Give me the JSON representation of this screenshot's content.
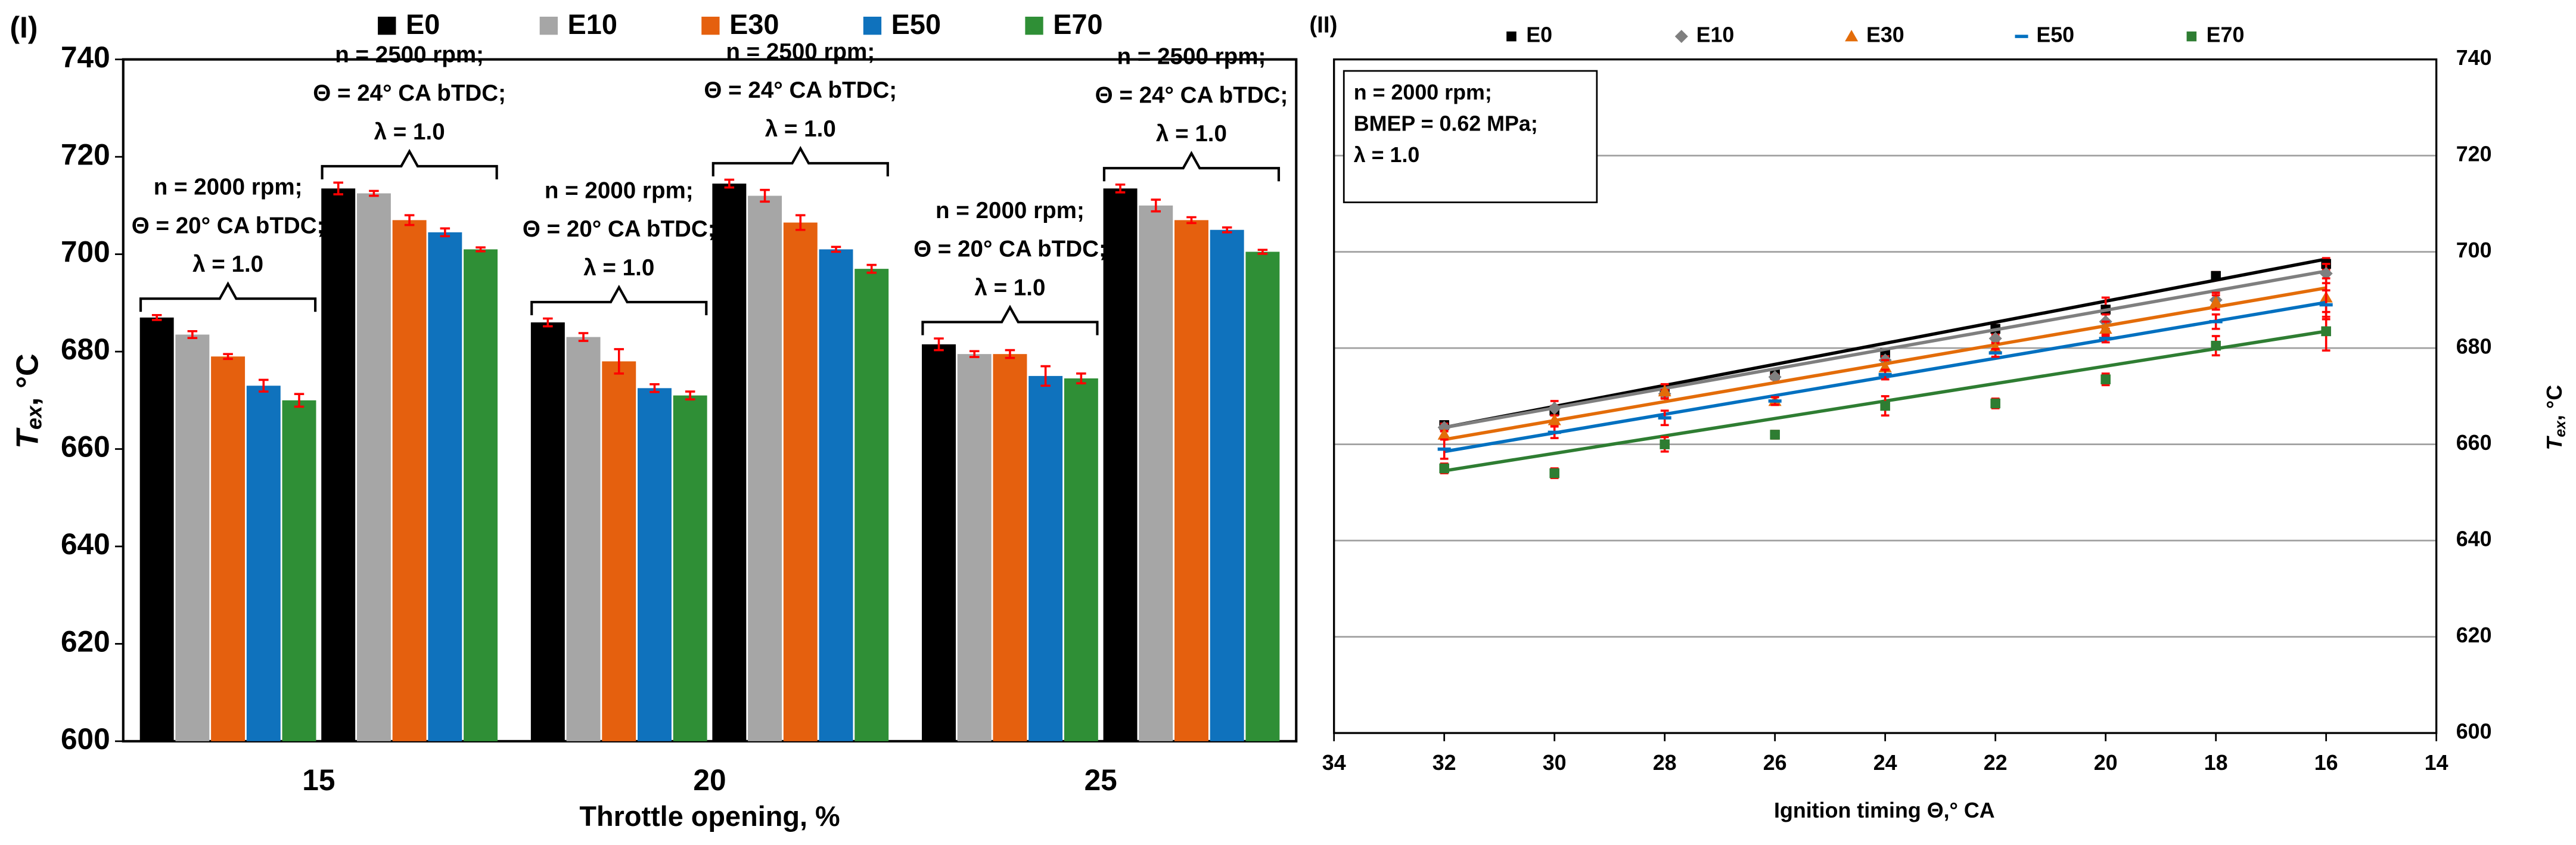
{
  "chart_data": [
    {
      "type": "bar",
      "label": "(I)",
      "xlabel": "Throttle opening, %",
      "ylabel": [
        "T",
        "ex",
        ", °C"
      ],
      "categories": [
        "15",
        "20",
        "25"
      ],
      "ylim": [
        600,
        740
      ],
      "yticks": [
        600,
        620,
        640,
        660,
        680,
        700,
        720,
        740
      ],
      "grid": false,
      "error_color": "#ff0000",
      "annotations": [
        [
          [
            "n = 2000 rpm;",
            "Θ = 20° CA bTDC;",
            "λ = 1.0"
          ],
          [
            "n = 2500 rpm;",
            "Θ = 24° CA bTDC;",
            "λ = 1.0"
          ]
        ],
        [
          [
            "n = 2000 rpm;",
            "Θ = 20° CA bTDC;",
            "λ = 1.0"
          ],
          [
            "n = 2500 rpm;",
            "Θ = 24° CA bTDC;",
            "λ = 1.0"
          ]
        ],
        [
          [
            "n = 2000 rpm;",
            "Θ = 20° CA bTDC;",
            "λ = 1.0"
          ],
          [
            "n = 2500 rpm;",
            "Θ = 24° CA bTDC;",
            "λ = 1.0"
          ]
        ]
      ],
      "series": [
        {
          "name": "E0",
          "color": "#000000",
          "values": [
            [
              687,
              713.5
            ],
            [
              686,
              714.5
            ],
            [
              681.5,
              713.5
            ]
          ],
          "errors": [
            [
              0.5,
              1.2
            ],
            [
              0.8,
              0.8
            ],
            [
              1.2,
              0.8
            ]
          ]
        },
        {
          "name": "E10",
          "color": "#a6a6a6",
          "values": [
            [
              683.5,
              712.5
            ],
            [
              683,
              712
            ],
            [
              679.5,
              710
            ]
          ],
          "errors": [
            [
              0.7,
              0.5
            ],
            [
              0.8,
              1.2
            ],
            [
              0.6,
              1.2
            ]
          ]
        },
        {
          "name": "E30",
          "color": "#e5600e",
          "values": [
            [
              679,
              707
            ],
            [
              678,
              706.5
            ],
            [
              679.5,
              707
            ]
          ],
          "errors": [
            [
              0.5,
              1
            ],
            [
              2.5,
              1.5
            ],
            [
              0.8,
              0.6
            ]
          ]
        },
        {
          "name": "E50",
          "color": "#0f72bd",
          "values": [
            [
              673,
              704.5
            ],
            [
              672.5,
              701
            ],
            [
              675,
              705
            ]
          ],
          "errors": [
            [
              1.2,
              0.8
            ],
            [
              0.8,
              0.5
            ],
            [
              2,
              0.5
            ]
          ]
        },
        {
          "name": "E70",
          "color": "#2f8f36",
          "values": [
            [
              670,
              701
            ],
            [
              671,
              697
            ],
            [
              674.5,
              700.5
            ]
          ],
          "errors": [
            [
              1.3,
              0.4
            ],
            [
              0.8,
              0.8
            ],
            [
              1,
              0.4
            ]
          ]
        }
      ]
    },
    {
      "type": "scatter",
      "label": "(II)",
      "xlabel": "Ignition timing Θ,° CA",
      "ylabel": [
        "T",
        "ex",
        ", °C"
      ],
      "box_text": [
        "n = 2000 rpm;",
        "BMEP = 0.62 MPa;",
        "λ = 1.0"
      ],
      "x": [
        32,
        30,
        28,
        26,
        24,
        22,
        20,
        18,
        16
      ],
      "xlim": [
        34,
        14
      ],
      "xticks": [
        34,
        32,
        30,
        28,
        26,
        24,
        22,
        20,
        18,
        16,
        14
      ],
      "ylim": [
        600,
        740
      ],
      "yticks": [
        600,
        620,
        640,
        660,
        680,
        700,
        720,
        740
      ],
      "grid": true,
      "error_color": "#ff0000",
      "series": [
        {
          "name": "E0",
          "color": "#000000",
          "marker": "square",
          "values": [
            664,
            667,
            671,
            674.5,
            679,
            684,
            688,
            695,
            697.5
          ],
          "errors": [
            0.5,
            1,
            0.8,
            0.5,
            0.5,
            0.8,
            2.5,
            0.8,
            1.2
          ],
          "fit": [
            663.5,
            698.5
          ]
        },
        {
          "name": "E10",
          "color": "#7f7f7f",
          "marker": "diamond",
          "values": [
            663.5,
            667.5,
            670.5,
            674,
            677.5,
            682,
            685.5,
            690,
            695.5
          ],
          "errors": [
            0.8,
            1.5,
            0.8,
            0.5,
            0.8,
            0.8,
            1.5,
            1.5,
            2
          ],
          "fit": [
            663.5,
            696
          ]
        },
        {
          "name": "E30",
          "color": "#e36c09",
          "marker": "triangle",
          "values": [
            662,
            665,
            671,
            669,
            676,
            680,
            684,
            689.5,
            690.5
          ],
          "errors": [
            0.8,
            1,
            1.5,
            0.8,
            1.5,
            1,
            1.5,
            1.5,
            4
          ],
          "fit": [
            661,
            692.5
          ]
        },
        {
          "name": "E50",
          "color": "#0070c0",
          "marker": "dash",
          "values": [
            659,
            662.5,
            665.5,
            669,
            674.5,
            679,
            682,
            685.5,
            689
          ],
          "errors": [
            2,
            1.2,
            1.5,
            0.8,
            1,
            0.8,
            0.8,
            1.5,
            3
          ],
          "fit": [
            658.5,
            689.5
          ]
        },
        {
          "name": "E70",
          "color": "#2e7d32",
          "marker": "square",
          "values": [
            655,
            654,
            660,
            662,
            668,
            668.5,
            673.5,
            680.5,
            683.5
          ],
          "errors": [
            1,
            1,
            1.5,
            0.8,
            2,
            1,
            1.2,
            2,
            4
          ],
          "fit": [
            654.5,
            683.5
          ]
        }
      ]
    }
  ]
}
